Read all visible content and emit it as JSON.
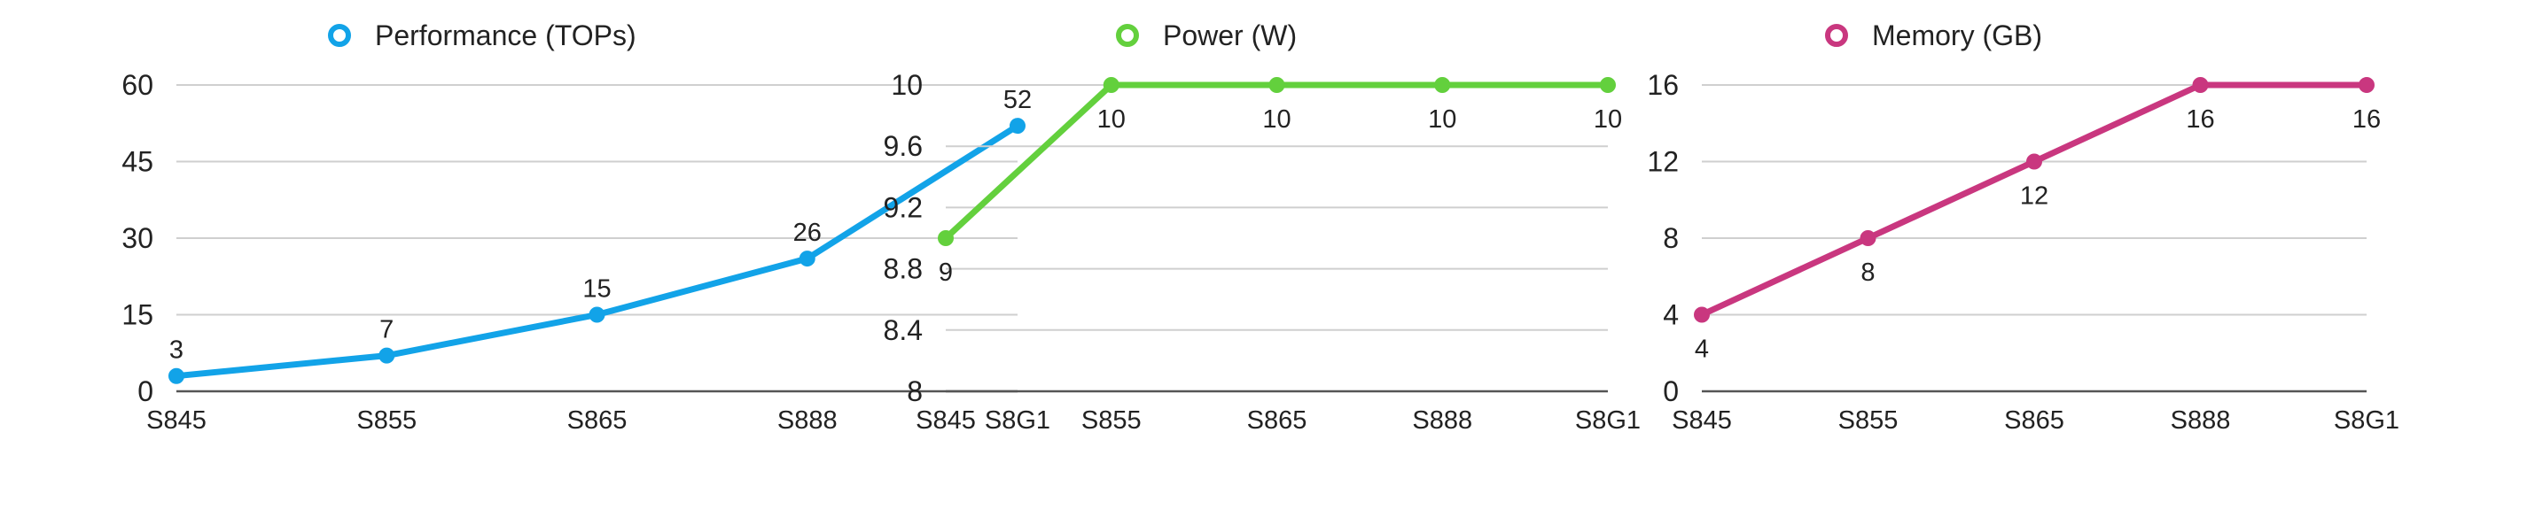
{
  "chart_data": [
    {
      "type": "line",
      "categories": [
        "S845",
        "S855",
        "S865",
        "S888",
        "S8G1"
      ],
      "series": [
        {
          "name": "Performance (TOPs)",
          "values": [
            3,
            7,
            15,
            26,
            52
          ],
          "color": "#12a3e8"
        }
      ],
      "y_ticks": [
        0,
        15,
        30,
        45,
        60
      ],
      "ylim": [
        0,
        60
      ],
      "data_labels": [
        "3",
        "7",
        "15",
        "26",
        "52"
      ],
      "legend": "top-center",
      "grid": true
    },
    {
      "type": "line",
      "categories": [
        "S845",
        "S855",
        "S865",
        "S888",
        "S8G1"
      ],
      "series": [
        {
          "name": "Power (W)",
          "values": [
            9,
            10,
            10,
            10,
            10
          ],
          "color": "#63d03d"
        }
      ],
      "y_ticks": [
        8,
        8.4,
        8.8,
        9.2,
        9.6,
        10
      ],
      "ylim": [
        8,
        10
      ],
      "data_labels": [
        "9",
        "10",
        "10",
        "10",
        "10"
      ],
      "legend": "top-center",
      "grid": true
    },
    {
      "type": "line",
      "categories": [
        "S845",
        "S855",
        "S865",
        "S888",
        "S8G1"
      ],
      "series": [
        {
          "name": "Memory (GB)",
          "values": [
            4,
            8,
            12,
            16,
            16
          ],
          "color": "#c9377f"
        }
      ],
      "y_ticks": [
        0,
        4,
        8,
        12,
        16
      ],
      "ylim": [
        0,
        16
      ],
      "data_labels": [
        "4",
        "8",
        "12",
        "16",
        "16"
      ],
      "legend": "top-center",
      "grid": true
    }
  ]
}
